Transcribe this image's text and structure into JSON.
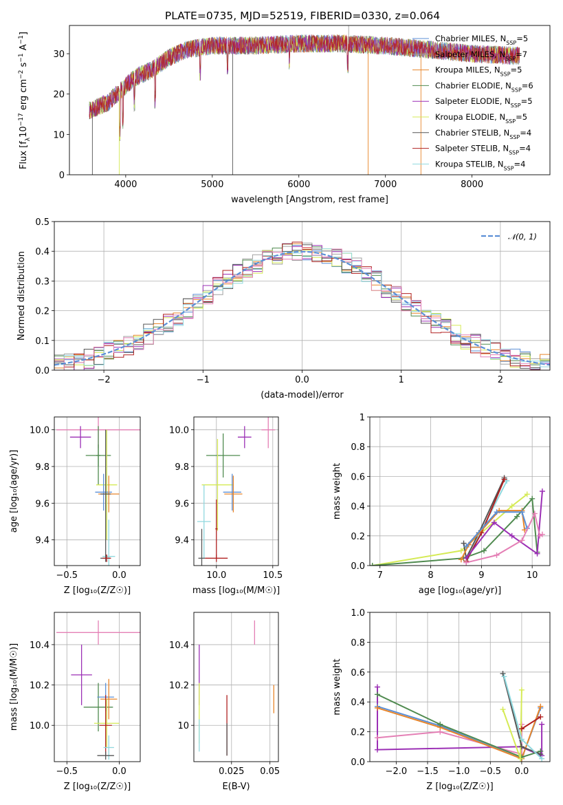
{
  "title": "PLATE=0735, MJD=52519, FIBERID=0330, z=0.064",
  "colors": {
    "chabrier_miles": "#5b8fd6",
    "salpeter_miles": "#a0a0a0",
    "kroupa_miles": "#e8852a",
    "chabrier_elodie": "#4f8a4f",
    "salpeter_elodie": "#9b2fb5",
    "kroupa_elodie": "#d5ea55",
    "chabrier_stelib": "#555555",
    "salpeter_stelib": "#b02020",
    "kroupa_stelib": "#8fd8de",
    "pink": "#e47fb5",
    "normal": "#5b8fd6"
  },
  "chart_data": [
    {
      "id": "spectrum",
      "type": "line",
      "xlabel": "wavelength [Angstrom, rest frame]",
      "ylabel": "Flux [f_λ10^-17 erg cm^-2 s^-1 A^-1]",
      "xlim": [
        3350,
        8900
      ],
      "ylim": [
        0,
        37
      ],
      "xticks": [
        4000,
        5000,
        6000,
        7000,
        8000
      ],
      "yticks": [
        0,
        10,
        20,
        30
      ],
      "grid": false,
      "legend_position": "upper-right",
      "legend": [
        "Chabrier MILES, N_SSP=5",
        "Salpeter MILES, N_SSP=7",
        "Kroupa MILES, N_SSP=5",
        "Chabrier ELODIE, N_SSP=6",
        "Salpeter ELODIE, N_SSP=5",
        "Kroupa ELODIE, N_SSP=5",
        "Chabrier STELIB, N_SSP=4",
        "Salpeter STELIB, N_SSP=4",
        "Kroupa STELIB, N_SSP=4"
      ],
      "continuum": [
        [
          3600,
          16
        ],
        [
          3650,
          16.5
        ],
        [
          3800,
          18
        ],
        [
          3950,
          21
        ],
        [
          4100,
          24
        ],
        [
          4300,
          26
        ],
        [
          4500,
          29
        ],
        [
          4700,
          31
        ],
        [
          5000,
          32
        ],
        [
          5500,
          32
        ],
        [
          6000,
          32.5
        ],
        [
          6500,
          32.5
        ],
        [
          7000,
          32
        ],
        [
          7500,
          31
        ],
        [
          8000,
          30
        ],
        [
          8500,
          29.5
        ]
      ]
    },
    {
      "id": "residuals",
      "type": "histogram",
      "xlabel": "(data-model)/error",
      "ylabel": "Normed distribution",
      "xlim": [
        -2.5,
        2.5
      ],
      "ylim": [
        0,
        0.5
      ],
      "xticks": [
        -2,
        -1,
        0,
        1,
        2
      ],
      "yticks": [
        0.0,
        0.1,
        0.2,
        0.3,
        0.4,
        0.5
      ],
      "grid": true,
      "legend_position": "upper-right",
      "normal_label": "𝒩(0, 1)"
    },
    {
      "id": "age_vs_Z",
      "type": "errorbar",
      "xlabel": "Z [log10(Z/Z⊙)]",
      "ylabel": "age  [log10(age/yr)]",
      "xlim": [
        -0.62,
        0.2
      ],
      "ylim": [
        9.26,
        10.07
      ],
      "xticks": [
        -0.5,
        0.0
      ],
      "yticks": [
        9.4,
        9.6,
        9.8,
        10.0
      ],
      "grid": true,
      "points": [
        {
          "c": "pink",
          "x": -0.2,
          "xe": 0.4,
          "y": 10.0,
          "ye": 0.1
        },
        {
          "c": "salpeter_elodie",
          "x": -0.37,
          "xe": 0.1,
          "y": 9.96,
          "ye": 0.06
        },
        {
          "c": "chabrier_elodie",
          "x": -0.2,
          "xe": 0.12,
          "y": 9.86,
          "ye": 0.06
        },
        {
          "c": "chabrier_elodie",
          "x": -0.2,
          "xe": 0.02,
          "y": 9.86,
          "ye": 0.16
        },
        {
          "c": "kroupa_elodie",
          "x": -0.12,
          "xe": 0.1,
          "y": 9.7,
          "ye": 0.3
        },
        {
          "c": "chabrier_miles",
          "x": -0.15,
          "xe": 0.08,
          "y": 9.66,
          "ye": 0.1
        },
        {
          "c": "kroupa_miles",
          "x": -0.1,
          "xe": 0.1,
          "y": 9.65,
          "ye": 0.1
        },
        {
          "c": "chabrier_stelib",
          "x": -0.13,
          "xe": 0.05,
          "y": 9.65,
          "ye": 0.35
        },
        {
          "c": "kroupa_stelib",
          "x": -0.1,
          "xe": 0.06,
          "y": 9.31,
          "ye": 0.2
        },
        {
          "c": "chabrier_stelib",
          "x": -0.13,
          "xe": 0.05,
          "y": 9.3,
          "ye": 0.02
        },
        {
          "c": "salpeter_stelib",
          "x": -0.12,
          "xe": 0.04,
          "y": 9.3,
          "ye": 0.02
        }
      ]
    },
    {
      "id": "age_vs_mass",
      "type": "errorbar",
      "xlabel": "mass [log10(M/M⊙)]",
      "ylabel": "",
      "xlim": [
        9.8,
        10.55
      ],
      "ylim": [
        9.26,
        10.07
      ],
      "xticks": [
        10.0,
        10.5
      ],
      "yticks": [
        9.4,
        9.6,
        9.8,
        10.0
      ],
      "grid": true,
      "points": [
        {
          "c": "pink",
          "x": 10.46,
          "xe": 0.06,
          "y": 10.0,
          "ye": 0.1
        },
        {
          "c": "salpeter_elodie",
          "x": 10.25,
          "xe": 0.06,
          "y": 9.96,
          "ye": 0.06
        },
        {
          "c": "chabrier_elodie",
          "x": 10.06,
          "xe": 0.15,
          "y": 9.86,
          "ye": 0.12
        },
        {
          "c": "kroupa_elodie",
          "x": 10.01,
          "xe": 0.14,
          "y": 9.7,
          "ye": 0.25
        },
        {
          "c": "chabrier_miles",
          "x": 10.14,
          "xe": 0.08,
          "y": 9.66,
          "ye": 0.1
        },
        {
          "c": "kroupa_miles",
          "x": 10.15,
          "xe": 0.08,
          "y": 9.65,
          "ye": 0.1
        },
        {
          "c": "kroupa_stelib",
          "x": 9.89,
          "xe": 0.06,
          "y": 9.5,
          "ye": 0.2
        },
        {
          "c": "chabrier_stelib",
          "x": 9.87,
          "xe": 0.03,
          "y": 9.3,
          "ye": 0.16
        },
        {
          "c": "salpeter_stelib",
          "x": 10.0,
          "xe": 0.1,
          "y": 9.3,
          "ye": 0.02
        },
        {
          "c": "salpeter_stelib",
          "x": 10.0,
          "xe": 0.01,
          "y": 9.46,
          "ye": 0.16
        }
      ]
    },
    {
      "id": "weight_vs_age",
      "type": "line",
      "xlabel": "age  [log10(age/yr)]",
      "ylabel": "mass weight",
      "xlim": [
        6.8,
        10.35
      ],
      "ylim": [
        0,
        1
      ],
      "xticks": [
        7,
        8,
        9,
        10
      ],
      "yticks": [
        0.0,
        0.2,
        0.4,
        0.6,
        0.8,
        1.0
      ],
      "grid": true,
      "series": [
        {
          "c": "kroupa_elodie",
          "points": [
            [
              6.85,
              0.0
            ],
            [
              8.6,
              0.1
            ],
            [
              9.6,
              0.4
            ],
            [
              9.9,
              0.48
            ]
          ]
        },
        {
          "c": "chabrier_elodie",
          "points": [
            [
              6.85,
              0.0
            ],
            [
              8.65,
              0.05
            ],
            [
              9.05,
              0.1
            ],
            [
              9.7,
              0.33
            ],
            [
              10.0,
              0.45
            ],
            [
              10.1,
              0.09
            ]
          ]
        },
        {
          "c": "chabrier_stelib",
          "points": [
            [
              8.65,
              0.15
            ],
            [
              8.7,
              0.05
            ],
            [
              8.95,
              0.22
            ],
            [
              9.45,
              0.59
            ]
          ]
        },
        {
          "c": "kroupa_stelib",
          "points": [
            [
              8.7,
              0.02
            ],
            [
              8.95,
              0.2
            ],
            [
              9.5,
              0.57
            ]
          ]
        },
        {
          "c": "salpeter_stelib",
          "points": [
            [
              8.7,
              0.03
            ],
            [
              9.0,
              0.22
            ],
            [
              9.45,
              0.58
            ]
          ]
        },
        {
          "c": "kroupa_miles",
          "points": [
            [
              8.6,
              0.04
            ],
            [
              8.75,
              0.14
            ],
            [
              9.35,
              0.37
            ],
            [
              9.8,
              0.37
            ],
            [
              9.85,
              0.24
            ]
          ]
        },
        {
          "c": "chabrier_miles",
          "points": [
            [
              8.7,
              0.13
            ],
            [
              9.3,
              0.36
            ],
            [
              9.8,
              0.36
            ],
            [
              9.9,
              0.25
            ]
          ]
        },
        {
          "c": "salpeter_elodie",
          "points": [
            [
              8.7,
              0.05
            ],
            [
              9.25,
              0.29
            ],
            [
              9.6,
              0.2
            ],
            [
              10.1,
              0.08
            ],
            [
              10.2,
              0.5
            ]
          ]
        },
        {
          "c": "pink",
          "points": [
            [
              8.7,
              0.02
            ],
            [
              9.3,
              0.07
            ],
            [
              9.8,
              0.17
            ],
            [
              10.05,
              0.35
            ],
            [
              10.15,
              0.2
            ],
            [
              10.2,
              0.21
            ]
          ]
        }
      ]
    },
    {
      "id": "mass_vs_Z",
      "type": "errorbar",
      "xlabel": "Z [log10(Z/Z⊙)]",
      "ylabel": "mass [log10(M/M⊙)]",
      "xlim": [
        -0.62,
        0.2
      ],
      "ylim": [
        9.82,
        10.56
      ],
      "xticks": [
        -0.5,
        0.0
      ],
      "yticks": [
        10.0,
        10.2,
        10.4
      ],
      "grid": true,
      "points": [
        {
          "c": "pink",
          "x": -0.2,
          "xe": 0.4,
          "y": 10.46,
          "ye": 0.06
        },
        {
          "c": "salpeter_elodie",
          "x": -0.36,
          "xe": 0.1,
          "y": 10.25,
          "ye": 0.15
        },
        {
          "c": "chabrier_elodie",
          "x": -0.2,
          "xe": 0.14,
          "y": 10.09,
          "ye": 0.12
        },
        {
          "c": "chabrier_miles",
          "x": -0.13,
          "xe": 0.08,
          "y": 10.14,
          "ye": 0.07
        },
        {
          "c": "kroupa_miles",
          "x": -0.1,
          "xe": 0.08,
          "y": 10.13,
          "ye": 0.1
        },
        {
          "c": "kroupa_elodie",
          "x": -0.12,
          "xe": 0.12,
          "y": 10.01,
          "ye": 0.12
        },
        {
          "c": "salpeter_stelib",
          "x": -0.13,
          "xe": 0.06,
          "y": 10.0,
          "ye": 0.15
        },
        {
          "c": "kroupa_stelib",
          "x": -0.1,
          "xe": 0.05,
          "y": 9.89,
          "ye": 0.06
        },
        {
          "c": "chabrier_stelib",
          "x": -0.13,
          "xe": 0.08,
          "y": 9.85,
          "ye": 0.02
        }
      ]
    },
    {
      "id": "mass_vs_ebv",
      "type": "errorbar",
      "xlabel": "E(B-V)",
      "ylabel": "",
      "xlim": [
        0.0005,
        0.0555
      ],
      "ylim": [
        9.82,
        10.56
      ],
      "xticks": [
        0.025,
        0.05
      ],
      "yticks": [
        10.0,
        10.2,
        10.4
      ],
      "grid": true,
      "points": [
        {
          "c": "pink",
          "x": 0.04,
          "xe": 0.0,
          "y": 10.46,
          "ye": 0.06
        },
        {
          "c": "salpeter_elodie",
          "x": 0.004,
          "xe": 0.0,
          "y": 10.25,
          "ye": 0.15
        },
        {
          "c": "kroupa_miles",
          "x": 0.0525,
          "xe": 0.0,
          "y": 10.13,
          "ye": 0.07
        },
        {
          "c": "kroupa_elodie",
          "x": 0.004,
          "xe": 0.0,
          "y": 10.06,
          "ye": 0.15
        },
        {
          "c": "kroupa_stelib",
          "x": 0.004,
          "xe": 0.0,
          "y": 9.95,
          "ye": 0.08
        },
        {
          "c": "salpeter_stelib",
          "x": 0.022,
          "xe": 0.0,
          "y": 10.0,
          "ye": 0.15
        },
        {
          "c": "chabrier_stelib",
          "x": 0.022,
          "xe": 0.0,
          "y": 9.93,
          "ye": 0.08
        }
      ]
    },
    {
      "id": "weight_vs_Z",
      "type": "line",
      "xlabel": "Z [log10(Z/Z⊙)]",
      "ylabel": "mass weight",
      "xlim": [
        -2.42,
        0.45
      ],
      "ylim": [
        0,
        1
      ],
      "xticks": [
        -2.0,
        -1.5,
        -1.0,
        -0.5,
        0.0
      ],
      "yticks": [
        0.0,
        0.2,
        0.4,
        0.6,
        0.8,
        1.0
      ],
      "grid": true,
      "series": [
        {
          "c": "salpeter_elodie",
          "points": [
            [
              -2.3,
              0.5
            ],
            [
              -2.3,
              0.08
            ],
            [
              -0.02,
              0.1
            ],
            [
              0.32,
              0.04
            ],
            [
              0.32,
              0.25
            ]
          ]
        },
        {
          "c": "pink",
          "points": [
            [
              -2.3,
              0.16
            ],
            [
              -1.3,
              0.2
            ],
            [
              0.0,
              0.05
            ],
            [
              0.0,
              0.25
            ]
          ]
        },
        {
          "c": "chabrier_miles",
          "points": [
            [
              -2.3,
              0.37
            ],
            [
              -1.3,
              0.24
            ],
            [
              0.0,
              0.02
            ],
            [
              0.3,
              0.36
            ]
          ]
        },
        {
          "c": "kroupa_miles",
          "points": [
            [
              -2.3,
              0.36
            ],
            [
              -1.3,
              0.23
            ],
            [
              0.0,
              0.02
            ],
            [
              0.3,
              0.37
            ]
          ]
        },
        {
          "c": "chabrier_elodie",
          "points": [
            [
              -2.3,
              0.45
            ],
            [
              -1.3,
              0.25
            ],
            [
              0.0,
              0.03
            ],
            [
              0.3,
              0.07
            ]
          ]
        },
        {
          "c": "kroupa_elodie",
          "points": [
            [
              -0.3,
              0.35
            ],
            [
              -0.02,
              0.02
            ],
            [
              0.0,
              0.48
            ]
          ]
        },
        {
          "c": "chabrier_stelib",
          "points": [
            [
              -0.3,
              0.59
            ],
            [
              0.0,
              0.1
            ],
            [
              0.3,
              0.05
            ]
          ]
        },
        {
          "c": "kroupa_stelib",
          "points": [
            [
              -0.28,
              0.57
            ],
            [
              0.0,
              0.15
            ],
            [
              0.32,
              0.02
            ]
          ]
        },
        {
          "c": "salpeter_stelib",
          "points": [
            [
              0.0,
              0.22
            ],
            [
              0.3,
              0.3
            ]
          ]
        }
      ]
    }
  ]
}
